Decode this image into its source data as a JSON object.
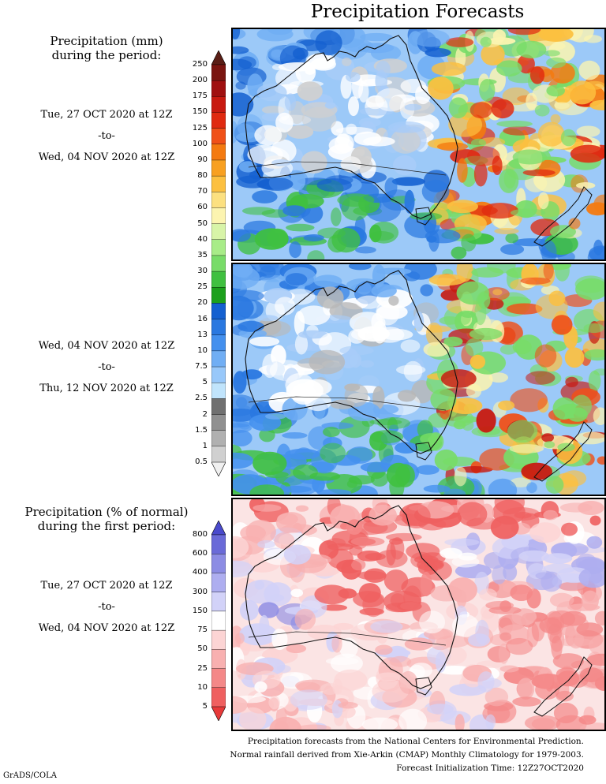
{
  "title": "Precipitation Forecasts",
  "panel1_label": {
    "heading_1": "Precipitation (mm)",
    "heading_2": "during the period:",
    "start": "Tue, 27 OCT 2020 at 12Z",
    "to": "-to-",
    "end": "Wed, 04 NOV 2020 at 12Z"
  },
  "panel2_label": {
    "start": "Wed, 04 NOV 2020 at 12Z",
    "to": "-to-",
    "end": "Thu, 12 NOV 2020 at 12Z"
  },
  "panel3_label": {
    "heading_1": "Precipitation (% of normal)",
    "heading_2": "during the first period:",
    "start": "Tue, 27 OCT 2020 at 12Z",
    "to": "-to-",
    "end": "Wed, 04 NOV 2020 at 12Z"
  },
  "mm_scale": {
    "ticks": [
      "250",
      "200",
      "175",
      "150",
      "125",
      "100",
      "90",
      "80",
      "70",
      "60",
      "50",
      "40",
      "35",
      "30",
      "25",
      "20",
      "16",
      "13",
      "10",
      "7.5",
      "5",
      "2.5",
      "2",
      "1.5",
      "1",
      "0.5"
    ],
    "colors": [
      "#5a1e16",
      "#7a1510",
      "#a01010",
      "#c81a10",
      "#e02a10",
      "#f05018",
      "#f47a10",
      "#f8a020",
      "#fcc040",
      "#fce080",
      "#fcf4b0",
      "#d8f4a8",
      "#a8ec88",
      "#78dc68",
      "#40c040",
      "#1ca01c",
      "#1460d0",
      "#2a78e0",
      "#4490ee",
      "#70aef4",
      "#98c8fa",
      "#c0e4fc",
      "#707070",
      "#909090",
      "#b0b0b0",
      "#d0d0d0",
      "#f0f0f0"
    ]
  },
  "pct_scale": {
    "ticks": [
      "800",
      "600",
      "400",
      "300",
      "150",
      "75",
      "50",
      "25",
      "10",
      "5"
    ],
    "colors": [
      "#4a4acc",
      "#6a6ad8",
      "#8c8ce4",
      "#aeaef0",
      "#d2d2f8",
      "#ffffff",
      "#fcd4d4",
      "#f8b0b0",
      "#f48888",
      "#ef6060",
      "#e83a3a"
    ]
  },
  "footer": {
    "line1": "Precipitation forecasts from the National Centers for Environmental Prediction.",
    "line2": "Normal rainfall derived from Xie-Arkin (CMAP) Monthly Climatology for 1979-2003.",
    "line3": "Forecast Initialization Time: 12Z27OCT2020"
  },
  "credit": "GrADS/COLA"
}
